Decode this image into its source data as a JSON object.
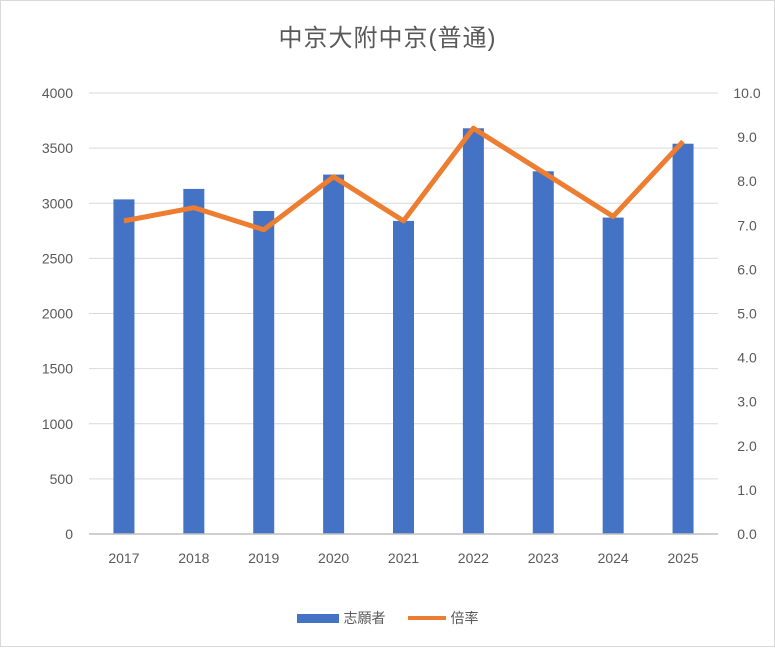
{
  "chart_data": {
    "type": "combo",
    "title": "中京大附中京(普通)",
    "categories": [
      "2017",
      "2018",
      "2019",
      "2020",
      "2021",
      "2022",
      "2023",
      "2024",
      "2025"
    ],
    "series": [
      {
        "name": "志願者",
        "type": "bar",
        "axis": "left",
        "color": "#4472C4",
        "values": [
          3035,
          3130,
          2930,
          3260,
          2840,
          3680,
          3290,
          2870,
          3540
        ]
      },
      {
        "name": "倍率",
        "type": "line",
        "axis": "right",
        "color": "#ED7D31",
        "values": [
          7.1,
          7.4,
          6.9,
          8.1,
          7.1,
          9.2,
          8.2,
          7.2,
          8.9
        ]
      }
    ],
    "left_axis": {
      "min": 0,
      "max": 4000,
      "step": 500,
      "tick_labels": [
        "0",
        "500",
        "1000",
        "1500",
        "2000",
        "2500",
        "3000",
        "3500",
        "4000"
      ]
    },
    "right_axis": {
      "min": 0,
      "max": 10,
      "step": 1,
      "tick_labels": [
        "0.0",
        "1.0",
        "2.0",
        "3.0",
        "4.0",
        "5.0",
        "6.0",
        "7.0",
        "8.0",
        "9.0",
        "10.0"
      ]
    },
    "legend": {
      "position": "bottom",
      "items": [
        "志願者",
        "倍率"
      ]
    },
    "grid": true,
    "colors": {
      "bar": "#4472C4",
      "line": "#ED7D31",
      "text": "#595959",
      "grid": "#D9D9D9",
      "axis": "#BFBFBF",
      "border": "#D9D9D9",
      "background": "#FFFFFF"
    }
  }
}
